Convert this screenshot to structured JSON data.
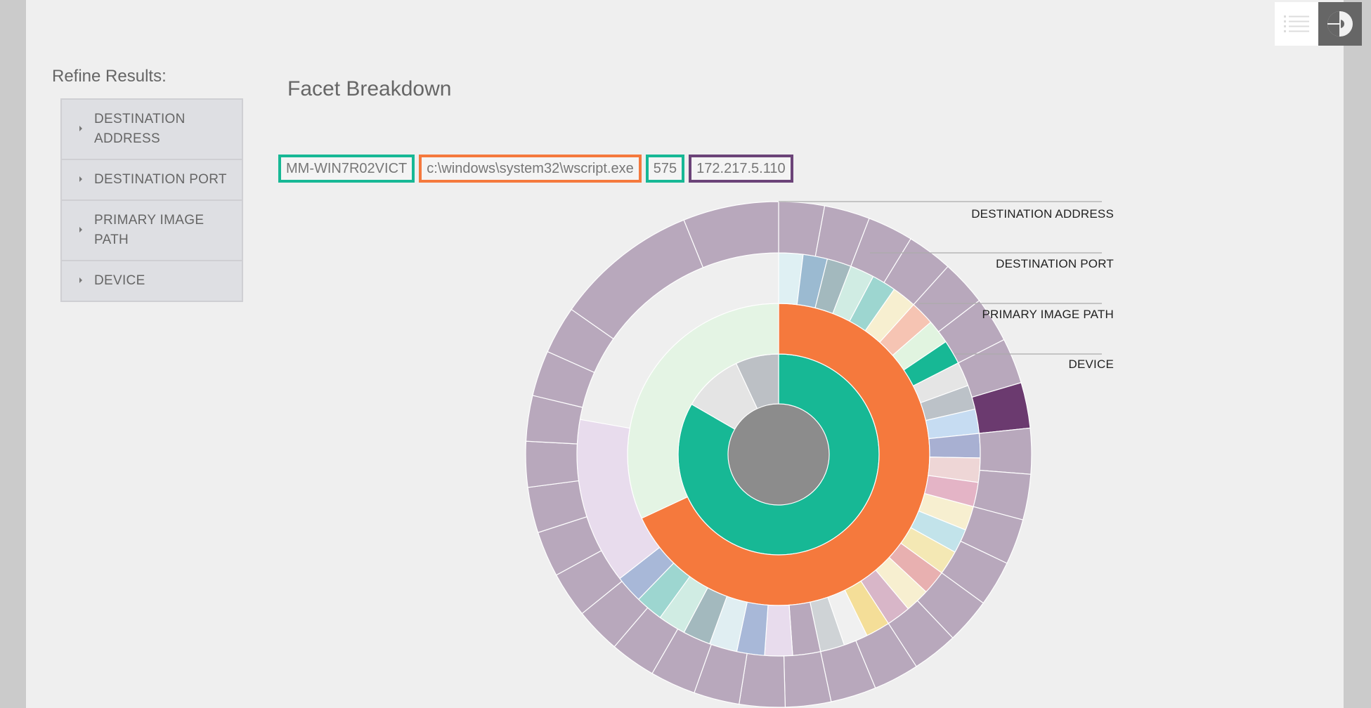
{
  "sidebar": {
    "title": "Refine Results:",
    "items": [
      {
        "label": "DESTINATION ADDRESS"
      },
      {
        "label": "DESTINATION PORT"
      },
      {
        "label": "PRIMARY IMAGE PATH"
      },
      {
        "label": "DEVICE"
      }
    ]
  },
  "main": {
    "title": "Facet Breakdown",
    "breadcrumbs": [
      {
        "label": "MM-WIN7R02VICT",
        "color": "#17b895"
      },
      {
        "label": "c:\\windows\\system32\\wscript.exe",
        "color": "#f5793d"
      },
      {
        "label": "575",
        "color": "#17b895"
      },
      {
        "label": "172.217.5.110",
        "color": "#6b4378"
      }
    ],
    "ring_labels": [
      {
        "label": "DESTINATION ADDRESS"
      },
      {
        "label": "DESTINATION PORT"
      },
      {
        "label": "PRIMARY IMAGE PATH"
      },
      {
        "label": "DEVICE"
      }
    ]
  },
  "toolbar": {
    "list_view_icon": "list-icon",
    "chart_view_icon": "pie-chart-icon"
  },
  "colors": {
    "device": "#17b895",
    "image_path": "#f5793d",
    "destination_address_selected": "#6b3a6f",
    "center": "#8c8c8c"
  }
}
